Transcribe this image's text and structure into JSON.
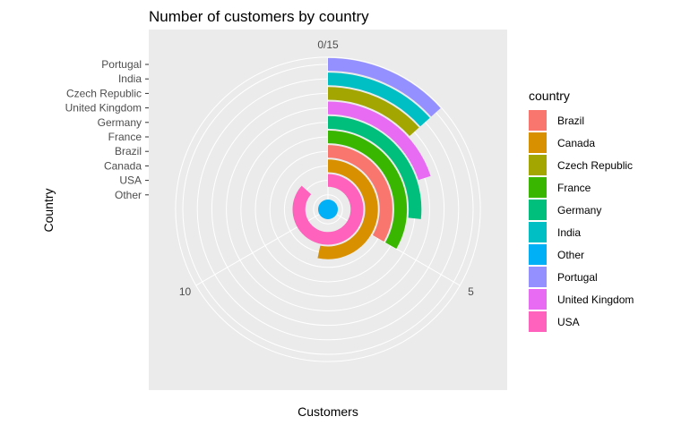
{
  "chart_data": {
    "type": "bar",
    "coord": "polar",
    "title": "Number of customers by country",
    "xlabel": "Customers",
    "ylabel": "Country",
    "ylim": [
      0,
      15
    ],
    "angle_ticks": [
      {
        "value": 0,
        "label": "0/15"
      },
      {
        "value": 5,
        "label": "5"
      },
      {
        "value": 10,
        "label": "10"
      }
    ],
    "categories": [
      "Other",
      "USA",
      "Canada",
      "Brazil",
      "France",
      "Germany",
      "United Kingdom",
      "Czech Republic",
      "India",
      "Portugal"
    ],
    "values": [
      15,
      13,
      8,
      5,
      5,
      4,
      3,
      2,
      2,
      2
    ],
    "colors": {
      "Brazil": "#F8766D",
      "Canada": "#D89000",
      "Czech Republic": "#A3A500",
      "France": "#39B600",
      "Germany": "#00BF7D",
      "India": "#00BFC4",
      "Other": "#00B0F6",
      "Portugal": "#9590FF",
      "United Kingdom": "#E76BF3",
      "USA": "#FF62BC"
    },
    "legend": {
      "title": "country",
      "position": "right",
      "entries": [
        "Brazil",
        "Canada",
        "Czech Republic",
        "France",
        "Germany",
        "India",
        "Other",
        "Portugal",
        "United Kingdom",
        "USA"
      ]
    },
    "grid": true,
    "panel_background": "#EBEBEB"
  }
}
